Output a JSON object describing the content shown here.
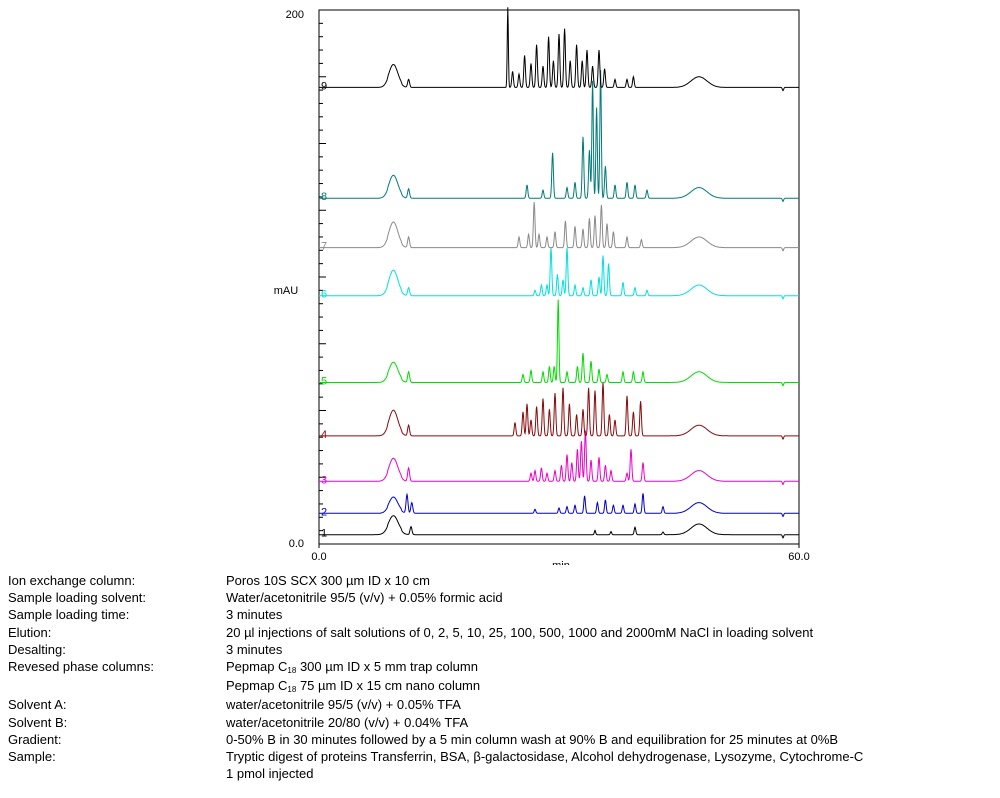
{
  "chart_data": {
    "type": "line",
    "xlabel": "min",
    "ylabel": "mAU",
    "xlim": [
      0.0,
      60.0
    ],
    "ylim": [
      0.0,
      200
    ],
    "x_tick_labels": [
      "0.0",
      "60.0"
    ],
    "y_tick_labels": [
      "0.0",
      "200"
    ],
    "grid": false,
    "series": [
      {
        "name": "1",
        "color": "#000000",
        "baseline": 3.5,
        "scale": 1.0,
        "peaks": [
          [
            9.3,
            6.5,
            0.6
          ],
          [
            11.5,
            3.0,
            0.12
          ],
          [
            34.5,
            1.6,
            0.08
          ],
          [
            36.5,
            1.2,
            0.08
          ],
          [
            39.5,
            2.8,
            0.1
          ],
          [
            43.0,
            1.0,
            0.1
          ],
          [
            47.5,
            4.0,
            1.0
          ]
        ]
      },
      {
        "name": "2",
        "color": "#0000cc",
        "baseline": 11.5,
        "scale": 1.0,
        "peaks": [
          [
            9.3,
            5.5,
            0.55
          ],
          [
            11.0,
            7.0,
            0.12
          ],
          [
            11.6,
            4.0,
            0.12
          ],
          [
            27.0,
            1.5,
            0.1
          ],
          [
            30.0,
            2.0,
            0.1
          ],
          [
            31.0,
            2.5,
            0.1
          ],
          [
            32.0,
            3.0,
            0.1
          ],
          [
            33.2,
            6.5,
            0.1
          ],
          [
            34.8,
            4.0,
            0.1
          ],
          [
            35.8,
            5.0,
            0.1
          ],
          [
            36.8,
            3.0,
            0.1
          ],
          [
            38.0,
            3.0,
            0.1
          ],
          [
            39.5,
            3.5,
            0.1
          ],
          [
            40.5,
            7.5,
            0.1
          ],
          [
            43.0,
            2.5,
            0.1
          ],
          [
            47.5,
            4.0,
            1.0
          ]
        ]
      },
      {
        "name": "3",
        "color": "#ee00cc",
        "baseline": 23.5,
        "scale": 1.0,
        "peaks": [
          [
            9.3,
            8.0,
            0.55
          ],
          [
            11.2,
            5.0,
            0.12
          ],
          [
            26.5,
            3.0,
            0.1
          ],
          [
            27.0,
            4.0,
            0.1
          ],
          [
            27.8,
            5.0,
            0.1
          ],
          [
            28.5,
            3.0,
            0.1
          ],
          [
            29.5,
            4.0,
            0.1
          ],
          [
            30.3,
            6.0,
            0.1
          ],
          [
            31.0,
            10.0,
            0.1
          ],
          [
            31.6,
            7.0,
            0.1
          ],
          [
            32.3,
            12.0,
            0.1
          ],
          [
            32.8,
            15.0,
            0.1
          ],
          [
            33.3,
            19.0,
            0.1
          ],
          [
            34.0,
            8.0,
            0.1
          ],
          [
            35.0,
            9.0,
            0.1
          ],
          [
            35.8,
            6.0,
            0.1
          ],
          [
            36.5,
            4.0,
            0.1
          ],
          [
            38.5,
            3.0,
            0.1
          ],
          [
            39.0,
            12.0,
            0.1
          ],
          [
            40.5,
            7.0,
            0.1
          ],
          [
            47.5,
            4.0,
            1.0
          ]
        ]
      },
      {
        "name": "4",
        "color": "#8b0a0a",
        "baseline": 40.5,
        "scale": 1.0,
        "peaks": [
          [
            9.3,
            9.0,
            0.55
          ],
          [
            11.2,
            4.0,
            0.12
          ],
          [
            24.5,
            5.0,
            0.1
          ],
          [
            25.5,
            9.0,
            0.1
          ],
          [
            26.0,
            12.0,
            0.1
          ],
          [
            26.5,
            6.0,
            0.1
          ],
          [
            27.2,
            11.0,
            0.1
          ],
          [
            28.0,
            14.0,
            0.1
          ],
          [
            28.8,
            10.0,
            0.1
          ],
          [
            29.5,
            16.0,
            0.1
          ],
          [
            30.5,
            18.0,
            0.1
          ],
          [
            31.3,
            12.0,
            0.1
          ],
          [
            32.2,
            8.0,
            0.1
          ],
          [
            33.0,
            10.0,
            0.1
          ],
          [
            33.7,
            18.0,
            0.1
          ],
          [
            34.5,
            17.0,
            0.1
          ],
          [
            35.5,
            20.0,
            0.1
          ],
          [
            36.3,
            8.0,
            0.1
          ],
          [
            37.0,
            6.0,
            0.1
          ],
          [
            38.5,
            15.0,
            0.1
          ],
          [
            39.3,
            9.0,
            0.1
          ],
          [
            40.2,
            13.0,
            0.1
          ],
          [
            47.5,
            4.0,
            1.0
          ]
        ]
      },
      {
        "name": "5",
        "color": "#00dd00",
        "baseline": 60.5,
        "scale": 1.0,
        "peaks": [
          [
            9.3,
            7.0,
            0.55
          ],
          [
            11.2,
            4.0,
            0.12
          ],
          [
            25.5,
            3.0,
            0.1
          ],
          [
            26.5,
            4.5,
            0.1
          ],
          [
            28.0,
            4.0,
            0.1
          ],
          [
            28.8,
            6.0,
            0.1
          ],
          [
            29.4,
            6.0,
            0.1
          ],
          [
            29.9,
            31.0,
            0.09
          ],
          [
            31.0,
            4.0,
            0.1
          ],
          [
            32.3,
            6.0,
            0.1
          ],
          [
            33.0,
            11.0,
            0.1
          ],
          [
            34.0,
            8.0,
            0.1
          ],
          [
            35.0,
            5.0,
            0.1
          ],
          [
            36.0,
            3.0,
            0.1
          ],
          [
            38.0,
            4.0,
            0.1
          ],
          [
            39.3,
            4.0,
            0.1
          ],
          [
            40.5,
            4.0,
            0.1
          ],
          [
            47.5,
            4.0,
            1.0
          ]
        ]
      },
      {
        "name": "6",
        "color": "#00e0e0",
        "baseline": 93.0,
        "scale": 1.0,
        "peaks": [
          [
            9.3,
            9.0,
            0.55
          ],
          [
            11.2,
            3.0,
            0.12
          ],
          [
            27.0,
            2.0,
            0.1
          ],
          [
            27.8,
            4.0,
            0.1
          ],
          [
            28.5,
            4.0,
            0.1
          ],
          [
            29.0,
            18.0,
            0.1
          ],
          [
            29.8,
            8.0,
            0.1
          ],
          [
            30.5,
            6.0,
            0.1
          ],
          [
            31.0,
            18.0,
            0.1
          ],
          [
            32.0,
            4.0,
            0.1
          ],
          [
            33.0,
            3.0,
            0.1
          ],
          [
            34.0,
            6.0,
            0.1
          ],
          [
            35.0,
            7.0,
            0.1
          ],
          [
            35.5,
            15.0,
            0.1
          ],
          [
            36.2,
            12.0,
            0.1
          ],
          [
            38.0,
            5.0,
            0.1
          ],
          [
            39.5,
            3.0,
            0.1
          ],
          [
            41.0,
            2.0,
            0.1
          ],
          [
            47.5,
            4.0,
            1.0
          ]
        ]
      },
      {
        "name": "7",
        "color": "#8a8a8a",
        "baseline": 111.0,
        "scale": 1.0,
        "peaks": [
          [
            9.3,
            9.0,
            0.55
          ],
          [
            11.2,
            4.0,
            0.12
          ],
          [
            25.0,
            4.0,
            0.1
          ],
          [
            26.2,
            5.0,
            0.1
          ],
          [
            26.9,
            17.0,
            0.1
          ],
          [
            27.5,
            5.0,
            0.1
          ],
          [
            28.5,
            4.0,
            0.1
          ],
          [
            29.5,
            6.0,
            0.1
          ],
          [
            30.8,
            10.0,
            0.1
          ],
          [
            32.0,
            8.0,
            0.1
          ],
          [
            33.0,
            7.0,
            0.1
          ],
          [
            33.8,
            11.0,
            0.1
          ],
          [
            34.5,
            12.0,
            0.1
          ],
          [
            35.3,
            16.0,
            0.1
          ],
          [
            36.0,
            9.0,
            0.1
          ],
          [
            36.8,
            6.0,
            0.1
          ],
          [
            38.5,
            4.0,
            0.1
          ],
          [
            40.3,
            3.0,
            0.1
          ],
          [
            47.5,
            4.0,
            1.0
          ]
        ]
      },
      {
        "name": "8",
        "color": "#007b7b",
        "baseline": 129.5,
        "scale": 1.0,
        "peaks": [
          [
            9.3,
            8.0,
            0.55
          ],
          [
            11.2,
            3.5,
            0.12
          ],
          [
            26.0,
            5.0,
            0.1
          ],
          [
            28.0,
            3.0,
            0.1
          ],
          [
            29.2,
            17.0,
            0.1
          ],
          [
            31.0,
            4.0,
            0.1
          ],
          [
            32.0,
            6.0,
            0.1
          ],
          [
            33.0,
            23.0,
            0.1
          ],
          [
            33.8,
            18.0,
            0.1
          ],
          [
            34.2,
            44.0,
            0.09
          ],
          [
            34.7,
            34.0,
            0.09
          ],
          [
            35.2,
            48.0,
            0.09
          ],
          [
            35.8,
            12.0,
            0.1
          ],
          [
            37.0,
            5.0,
            0.1
          ],
          [
            38.5,
            6.0,
            0.1
          ],
          [
            39.5,
            5.0,
            0.1
          ],
          [
            41.0,
            3.0,
            0.1
          ],
          [
            47.5,
            4.0,
            1.0
          ]
        ]
      },
      {
        "name": "9",
        "color": "#000000",
        "baseline": 171.0,
        "scale": 1.0,
        "peaks": [
          [
            9.3,
            8.0,
            0.55
          ],
          [
            11.2,
            3.0,
            0.12
          ],
          [
            23.6,
            30.0,
            0.07
          ],
          [
            24.2,
            6.0,
            0.1
          ],
          [
            25.0,
            5.0,
            0.1
          ],
          [
            25.7,
            12.0,
            0.1
          ],
          [
            26.5,
            9.0,
            0.1
          ],
          [
            27.2,
            16.0,
            0.1
          ],
          [
            28.0,
            8.0,
            0.1
          ],
          [
            28.7,
            19.0,
            0.1
          ],
          [
            29.3,
            10.0,
            0.1
          ],
          [
            30.0,
            20.0,
            0.1
          ],
          [
            30.7,
            22.0,
            0.1
          ],
          [
            31.4,
            10.0,
            0.1
          ],
          [
            32.2,
            16.0,
            0.1
          ],
          [
            32.9,
            10.0,
            0.1
          ],
          [
            33.5,
            14.0,
            0.1
          ],
          [
            34.2,
            8.0,
            0.1
          ],
          [
            35.0,
            14.0,
            0.1
          ],
          [
            35.7,
            7.0,
            0.1
          ],
          [
            37.0,
            3.0,
            0.1
          ],
          [
            38.5,
            3.0,
            0.1
          ],
          [
            39.3,
            4.0,
            0.1
          ],
          [
            47.5,
            4.0,
            1.0
          ]
        ]
      }
    ]
  },
  "params": [
    {
      "label": "Ion exchange column:",
      "value": "Poros 10S SCX 300 µm ID x 10 cm"
    },
    {
      "label": "Sample loading solvent:",
      "value": "Water/acetonitrile 95/5 (v/v) + 0.05% formic acid"
    },
    {
      "label": "Sample loading time:",
      "value": "3 minutes"
    },
    {
      "label": "Elution:",
      "value": "20 µl injections of salt solutions of 0, 2, 5, 10, 25, 100, 500, 1000 and 2000mM NaCl in loading solvent"
    },
    {
      "label": "Desalting:",
      "value": "3 minutes"
    }
  ],
  "rp_columns": {
    "label": "Revesed phase columns:",
    "line1": {
      "pre": "Pepmap C",
      "sub": "18",
      "post": " 300 µm ID x 5 mm trap column"
    },
    "line2": {
      "pre": "Pepmap C",
      "sub": "18",
      "post": " 75 µm ID x 15 cm nano column"
    }
  },
  "params2": [
    {
      "label": "Solvent A:",
      "value": "water/acetonitrile 95/5 (v/v) + 0.05% TFA"
    },
    {
      "label": "Solvent B:",
      "value": "water/acetonitrile 20/80 (v/v) + 0.04% TFA"
    },
    {
      "label": "Gradient:",
      "value": "0-50% B in 30 minutes followed by a 5 min column wash at 90% B and equilibration for 25 minutes at 0%B"
    },
    {
      "label": "Sample:",
      "value": "Tryptic digest of proteins Transferrin, BSA, β-galactosidase, Alcohol dehydrogenase, Lysozyme, Cytochrome-C"
    },
    {
      "label": "",
      "value": "1 pmol injected"
    }
  ]
}
